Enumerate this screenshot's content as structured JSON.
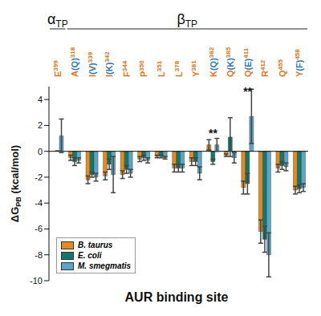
{
  "chart_data": {
    "type": "bar",
    "x_label": "AUR binding site",
    "y_label": "ΔGPB (kcal/mol)",
    "categories": [
      "E399",
      "A(Q)318",
      "I(V)339",
      "I(K)342",
      "F344",
      "P350",
      "L351",
      "L378",
      "Y381",
      "K(Q)382",
      "Q(K)385",
      "Q(E)411",
      "R412",
      "Q455",
      "Y(F)458"
    ],
    "series": [
      {
        "name": "B. taurus",
        "color": "#e8891a",
        "values": [
          0,
          -0.5,
          -2.2,
          -1.9,
          -1.8,
          -0.6,
          -0.4,
          -1.3,
          -0.8,
          0.5,
          -0.3,
          -2.8,
          -6.2,
          -1.3,
          -3.0
        ],
        "errors": [
          0,
          0.2,
          0.3,
          0.3,
          0.3,
          0.2,
          0.1,
          0.3,
          0.3,
          0.4,
          0.1,
          0.5,
          0.9,
          0.3,
          0.3
        ]
      },
      {
        "name": "E. coli",
        "color": "#0e7a6b",
        "values": [
          0.07,
          -0.8,
          -1.8,
          -1.0,
          -1.4,
          -0.5,
          -0.4,
          -1.3,
          -0.8,
          -0.8,
          1.1,
          -2.5,
          -6.8,
          -1.1,
          -2.9
        ],
        "errors": [
          0,
          0.3,
          0.2,
          0.4,
          0.3,
          0.2,
          0.1,
          0.3,
          0.3,
          0.2,
          1.5,
          0.8,
          1.0,
          0.3,
          0.3
        ]
      },
      {
        "name": "M. smegmatis",
        "color": "#5aa5c9",
        "values": [
          1.2,
          -0.7,
          -2.0,
          -1.8,
          -1.7,
          -0.7,
          -0.5,
          -1.3,
          -1.7,
          0.5,
          -0.5,
          2.7,
          -8.0,
          -1.2,
          -2.8
        ],
        "errors": [
          1.3,
          0.2,
          0.3,
          1.4,
          0.3,
          0.2,
          0.1,
          0.3,
          0.5,
          0.5,
          0.4,
          2.1,
          1.7,
          0.3,
          0.3
        ]
      }
    ],
    "regions": [
      {
        "label": "αTP",
        "start": 0,
        "end": 0
      },
      {
        "label": "βTP",
        "start": 1,
        "end": 14
      }
    ],
    "annotations": [
      {
        "category": "K(Q)382",
        "text": "**",
        "y": 1.4
      },
      {
        "category": "Q(E)411",
        "text": "**",
        "y": 4.6
      }
    ],
    "ylim": [
      -10,
      5
    ],
    "yticks": [
      -10,
      -8,
      -6,
      -4,
      -2,
      0,
      2,
      4
    ],
    "grid": false,
    "legend": "bottom-left"
  }
}
